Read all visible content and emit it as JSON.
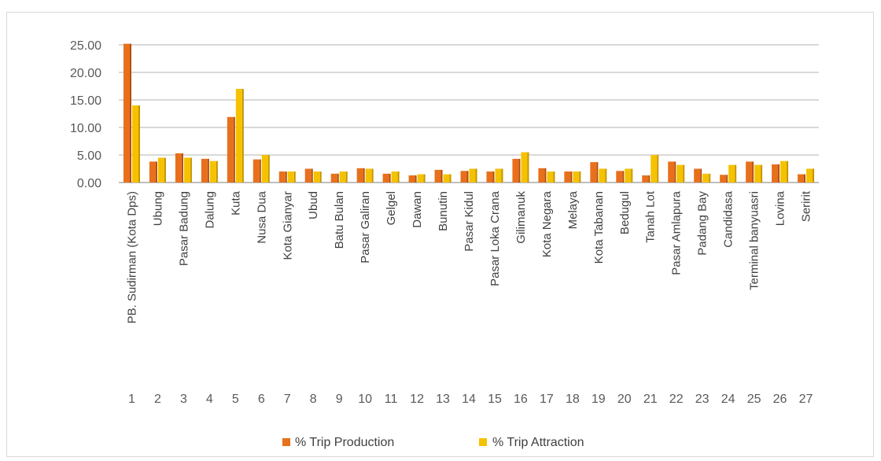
{
  "colors": {
    "production": "#e8701c",
    "production_dark": "#b54d0a",
    "attraction": "#f5c200",
    "attraction_dark": "#c59400",
    "grid": "#d9d9d9",
    "axis": "#bfbfbf"
  },
  "chart_data": {
    "type": "bar",
    "title": "",
    "xlabel": "",
    "ylabel": "",
    "ylim": [
      0,
      25
    ],
    "y_ticks": [
      "0.00",
      "5.00",
      "10.00",
      "15.00",
      "20.00",
      "25.00"
    ],
    "grid": true,
    "legend_position": "bottom",
    "categories": [
      "PB. Sudirman (Kota Dps)",
      "Ubung",
      "Pasar Badung",
      "Dalung",
      "Kuta",
      "Nusa Dua",
      "Kota Gianyar",
      "Ubud",
      "Batu Bulan",
      "Pasar Galiran",
      "Gelgel",
      "Dawan",
      "Bunutin",
      "Pasar Kidul",
      "Pasar Loka Crana",
      "Gilimanuk",
      "Kota Negara",
      "Melaya",
      "Kota Tabanan",
      "Bedugul",
      "Tanah Lot",
      "Pasar Amlapura",
      "Padang Bay",
      "Candidasa",
      "Terminal banyuasri",
      "Lovina",
      "Seririt"
    ],
    "indices": [
      "1",
      "2",
      "3",
      "4",
      "5",
      "6",
      "7",
      "8",
      "9",
      "10",
      "11",
      "12",
      "13",
      "14",
      "15",
      "16",
      "17",
      "18",
      "19",
      "20",
      "21",
      "22",
      "23",
      "24",
      "25",
      "26",
      "27"
    ],
    "series": [
      {
        "name": "% Trip Production",
        "values": [
          25.2,
          3.8,
          5.3,
          4.3,
          11.9,
          4.2,
          2.0,
          2.5,
          1.6,
          2.6,
          1.6,
          1.3,
          2.3,
          2.1,
          2.0,
          4.3,
          2.6,
          2.0,
          3.7,
          2.1,
          1.3,
          3.8,
          2.5,
          1.4,
          3.8,
          3.3,
          1.5
        ]
      },
      {
        "name": "% Trip Attraction",
        "values": [
          14.0,
          4.5,
          4.5,
          3.9,
          17.0,
          5.0,
          2.0,
          2.0,
          2.0,
          2.5,
          2.0,
          1.5,
          1.5,
          2.5,
          2.5,
          5.5,
          2.0,
          2.0,
          2.5,
          2.5,
          5.0,
          3.2,
          1.6,
          3.2,
          3.2,
          3.9,
          2.5
        ]
      }
    ]
  }
}
